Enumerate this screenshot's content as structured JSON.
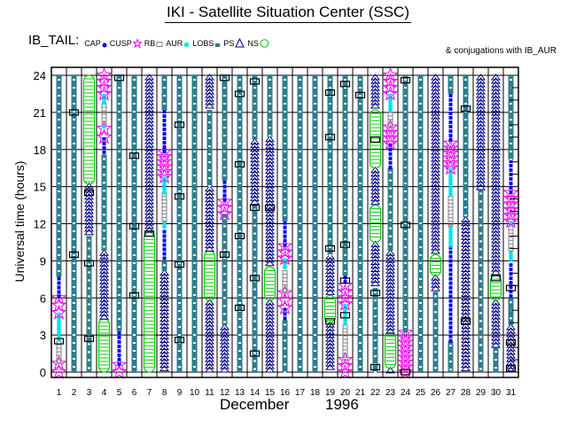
{
  "title": "IKI - Satellite Situation Center (SSC)",
  "conjugation_note": "& conjugations with IB_AUR",
  "chart_data": {
    "type": "timeline",
    "title": "IKI - Satellite Situation Center (SSC)",
    "satellite": "IB_TAIL:",
    "xlabel_month": "December",
    "xlabel_year": "1996",
    "ylabel": "Universal time (hours)",
    "ylim": [
      0,
      24
    ],
    "yticks": [
      0,
      3,
      6,
      9,
      12,
      15,
      18,
      21,
      24
    ],
    "ytick_labels": [
      "0",
      "3",
      "6",
      "9",
      "12",
      "15",
      "18",
      "21",
      "24"
    ],
    "days": [
      1,
      2,
      3,
      4,
      5,
      6,
      7,
      8,
      9,
      10,
      11,
      12,
      13,
      14,
      15,
      16,
      17,
      18,
      19,
      20,
      21,
      22,
      23,
      24,
      25,
      26,
      27,
      28,
      29,
      30,
      31
    ],
    "day_labels": [
      "1",
      "2",
      "3",
      "4",
      "5",
      "6",
      "7",
      "8",
      "9",
      "10",
      "11",
      "12",
      "13",
      "14",
      "15",
      "16",
      "17",
      "18",
      "19",
      "20",
      "21",
      "22",
      "23",
      "24",
      "25",
      "26",
      "27",
      "28",
      "29",
      "30",
      "31"
    ],
    "grid": true,
    "legend": [
      {
        "key": "CAP",
        "label": "CAP",
        "color": "#0000ee",
        "marker": "dot"
      },
      {
        "key": "CUSP",
        "label": "CUSP",
        "color": "#ee00ee",
        "marker": "star"
      },
      {
        "key": "RB",
        "label": "RB",
        "color": "#808080",
        "marker": "square"
      },
      {
        "key": "AUR",
        "label": "AUR",
        "color": "#00e0e8",
        "marker": "asterisk"
      },
      {
        "key": "LOBS",
        "label": "LOBS",
        "color": "#2e7d8a",
        "marker": "small-square"
      },
      {
        "key": "PS",
        "label": "PS",
        "color": "#000080",
        "marker": "triangle"
      },
      {
        "key": "NS",
        "label": "NS",
        "color": "#00cc00",
        "marker": "circle"
      }
    ],
    "conjugations_ut": {
      "1": [
        2.5
      ],
      "2": [
        21.0,
        9.5
      ],
      "3": [
        14.5,
        8.8,
        2.7
      ],
      "5": [
        23.8
      ],
      "6": [
        17.5,
        11.8,
        6.2
      ],
      "7": [
        11.2
      ],
      "9": [
        20.0,
        14.2,
        8.7,
        2.6
      ],
      "12": [
        23.8,
        9.5
      ],
      "13": [
        22.5,
        16.8,
        11.0,
        5.2
      ],
      "14": [
        23.5,
        13.3,
        7.6,
        1.5
      ],
      "15": [
        13.3
      ],
      "19": [
        22.6,
        19.0,
        10.0,
        4.1
      ],
      "20": [
        23.3,
        10.3,
        7.4,
        4.6
      ],
      "21": [
        22.4
      ],
      "22": [
        18.8,
        6.4,
        0.4
      ],
      "24": [
        23.6,
        11.9,
        0.0
      ],
      "28": [
        21.3,
        4.1
      ],
      "30": [
        7.6
      ],
      "31": [
        6.8,
        2.4,
        0.3
      ]
    },
    "series": [
      {
        "day": 1,
        "segments": [
          [
            "CUSP",
            0,
            0.7
          ],
          [
            "RB",
            0.7,
            2.5
          ],
          [
            "AUR",
            2.5,
            4.8
          ],
          [
            "CUSP",
            4.8,
            6.0
          ],
          [
            "CAP",
            6.0,
            7.7
          ],
          [
            "LOBS",
            7.7,
            24
          ]
        ]
      },
      {
        "day": 2,
        "segments": [
          [
            "LOBS",
            0,
            24
          ]
        ]
      },
      {
        "day": 3,
        "segments": [
          [
            "LOBS",
            0,
            11
          ],
          [
            "PS",
            11,
            15.2
          ],
          [
            "NS",
            15.2,
            24
          ]
        ]
      },
      {
        "day": 4,
        "segments": [
          [
            "NS",
            0,
            4.3
          ],
          [
            "PS",
            4.3,
            9.8
          ],
          [
            "LOBS",
            9.8,
            17.6
          ],
          [
            "CAP",
            17.6,
            19
          ],
          [
            "CUSP",
            19,
            19.7
          ],
          [
            "AUR",
            19.7,
            20
          ],
          [
            "RB",
            20,
            21.7
          ],
          [
            "AUR",
            21.7,
            22.5
          ],
          [
            "CUSP",
            22.5,
            24
          ]
        ]
      },
      {
        "day": 5,
        "segments": [
          [
            "CUSP",
            0,
            0.6
          ],
          [
            "CAP",
            0.6,
            3.3
          ],
          [
            "LOBS",
            3.3,
            24
          ]
        ]
      },
      {
        "day": 6,
        "segments": [
          [
            "LOBS",
            0,
            24
          ]
        ]
      },
      {
        "day": 7,
        "segments": [
          [
            "NS",
            0,
            11.3
          ],
          [
            "PS",
            11.3,
            24
          ]
        ]
      },
      {
        "day": 7.0001,
        "segments": []
      },
      {
        "day": 8,
        "segments": [
          [
            "PS",
            0,
            8.2
          ],
          [
            "LOBS",
            8.2,
            9.0
          ],
          [
            "CAP",
            9.0,
            11.5
          ],
          [
            "AUR",
            11.5,
            12.2
          ],
          [
            "RB",
            12.2,
            14.5
          ],
          [
            "AUR",
            14.5,
            15.8
          ],
          [
            "CUSP",
            15.8,
            17.8
          ],
          [
            "CAP",
            17.8,
            21.2
          ],
          [
            "LOBS",
            21.2,
            24
          ]
        ]
      },
      {
        "day": 9,
        "segments": [
          [
            "LOBS",
            0,
            24
          ]
        ]
      },
      {
        "day": 10,
        "segments": [
          [
            "LOBS",
            0,
            24
          ]
        ]
      },
      {
        "day": 11,
        "segments": [
          [
            "PS",
            0,
            5.8
          ],
          [
            "NS",
            5.8,
            9.8
          ],
          [
            "PS",
            9.8,
            15
          ],
          [
            "LOBS",
            15,
            21.2
          ],
          [
            "PS",
            21.2,
            24
          ]
        ]
      },
      {
        "day": 12,
        "segments": [
          [
            "PS",
            0,
            3.8
          ],
          [
            "LOBS",
            3.8,
            12.8
          ],
          [
            "CUSP",
            12.8,
            13.8
          ],
          [
            "CAP",
            13.8,
            15.5
          ],
          [
            "LOBS",
            15.5,
            24
          ]
        ]
      },
      {
        "day": 13,
        "segments": [
          [
            "LOBS",
            0,
            24
          ]
        ]
      },
      {
        "day": 14,
        "segments": [
          [
            "LOBS",
            0,
            13.5
          ],
          [
            "PS",
            13.5,
            18.8
          ],
          [
            "LOBS",
            18.8,
            24
          ]
        ]
      },
      {
        "day": 15,
        "segments": [
          [
            "PS",
            0,
            5.8
          ],
          [
            "NS",
            5.8,
            8.5
          ],
          [
            "PS",
            8.5,
            19
          ],
          [
            "LOBS",
            19,
            24
          ]
        ]
      },
      {
        "day": 16,
        "segments": [
          [
            "LOBS",
            0,
            4.2
          ],
          [
            "CAP",
            4.2,
            5.2
          ],
          [
            "CUSP",
            5.2,
            6.4
          ],
          [
            "RB",
            6.4,
            8.2
          ],
          [
            "AUR",
            8.2,
            9.2
          ],
          [
            "CUSP",
            9.2,
            10.2
          ],
          [
            "CAP",
            10.2,
            12.2
          ],
          [
            "LOBS",
            12.2,
            24
          ]
        ]
      },
      {
        "day": 17,
        "segments": [
          [
            "LOBS",
            0,
            24
          ]
        ]
      },
      {
        "day": 18,
        "segments": [
          [
            "LOBS",
            0,
            24
          ]
        ]
      },
      {
        "day": 19,
        "segments": [
          [
            "PS",
            0,
            4.0
          ],
          [
            "NS",
            4.0,
            6.2
          ],
          [
            "PS",
            6.2,
            9.5
          ],
          [
            "LOBS",
            9.5,
            24
          ]
        ]
      },
      {
        "day": 20,
        "segments": [
          [
            "CUSP",
            0,
            1.0
          ],
          [
            "RB",
            1.0,
            3.8
          ],
          [
            "AUR",
            3.8,
            5.5
          ],
          [
            "CUSP",
            5.5,
            7.0
          ],
          [
            "CAP",
            7.0,
            7.8
          ],
          [
            "LOBS",
            7.8,
            24
          ]
        ]
      },
      {
        "day": 21,
        "segments": [
          [
            "LOBS",
            0,
            24
          ]
        ]
      },
      {
        "day": 22,
        "segments": [
          [
            "LOBS",
            0,
            6.8
          ],
          [
            "PS",
            6.8,
            10.5
          ],
          [
            "NS",
            10.5,
            13.5
          ],
          [
            "PS",
            13.5,
            16.5
          ],
          [
            "NS",
            16.5,
            21.2
          ],
          [
            "PS",
            21.2,
            24
          ]
        ]
      },
      {
        "day": 23,
        "segments": [
          [
            "PS",
            0,
            0.3
          ],
          [
            "NS",
            0.3,
            3.2
          ],
          [
            "PS",
            3.2,
            9.8
          ],
          [
            "LOBS",
            9.8,
            16.5
          ],
          [
            "CAP",
            16.5,
            18.5
          ],
          [
            "CUSP",
            18.5,
            19.8
          ],
          [
            "RB",
            19.8,
            21.0
          ],
          [
            "AUR",
            21.0,
            22.5
          ],
          [
            "CUSP",
            22.5,
            24
          ]
        ]
      },
      {
        "day": 24,
        "segments": [
          [
            "CUSP",
            0,
            3.2
          ],
          [
            "LOBS",
            3.2,
            24
          ]
        ]
      },
      {
        "day": 25,
        "segments": [
          [
            "LOBS",
            0,
            24
          ]
        ]
      },
      {
        "day": 26,
        "segments": [
          [
            "LOBS",
            0,
            6.5
          ],
          [
            "PS",
            6.5,
            7.8
          ],
          [
            "NS",
            7.8,
            9.5
          ],
          [
            "PS",
            9.5,
            24
          ]
        ]
      },
      {
        "day": 27,
        "segments": [
          [
            "LOBS",
            0,
            2.5
          ],
          [
            "CAP",
            2.5,
            10.2
          ],
          [
            "AUR",
            10.2,
            11.8
          ],
          [
            "RB",
            11.8,
            14.2
          ],
          [
            "AUR",
            14.2,
            16.5
          ],
          [
            "CUSP",
            16.5,
            18.5
          ],
          [
            "CAP",
            18.5,
            22.5
          ],
          [
            "LOBS",
            22.5,
            24
          ]
        ]
      },
      {
        "day": 28,
        "segments": [
          [
            "PS",
            0,
            12.5
          ],
          [
            "LOBS",
            12.5,
            24
          ]
        ]
      },
      {
        "day": 29,
        "segments": [
          [
            "LOBS",
            0,
            14.8
          ],
          [
            "PS",
            14.8,
            24
          ]
        ]
      },
      {
        "day": 30,
        "segments": [
          [
            "LOBS",
            0,
            2.0
          ],
          [
            "PS",
            2.0,
            5.8
          ],
          [
            "NS",
            5.8,
            7.8
          ],
          [
            "PS",
            7.8,
            24
          ]
        ]
      },
      {
        "day": 31,
        "segments": [
          [
            "PS",
            0,
            3.8
          ],
          [
            "LOBS",
            3.8,
            6.0
          ],
          [
            "CAP",
            6.0,
            8.8
          ],
          [
            "AUR",
            8.8,
            9.8
          ],
          [
            "RB",
            9.8,
            11.8
          ],
          [
            "AUR",
            11.8,
            12.2
          ],
          [
            "CUSP",
            12.2,
            14.5
          ],
          [
            "CAP",
            14.5,
            17.2
          ],
          [
            "LOBS",
            17.2,
            24
          ]
        ]
      }
    ]
  }
}
